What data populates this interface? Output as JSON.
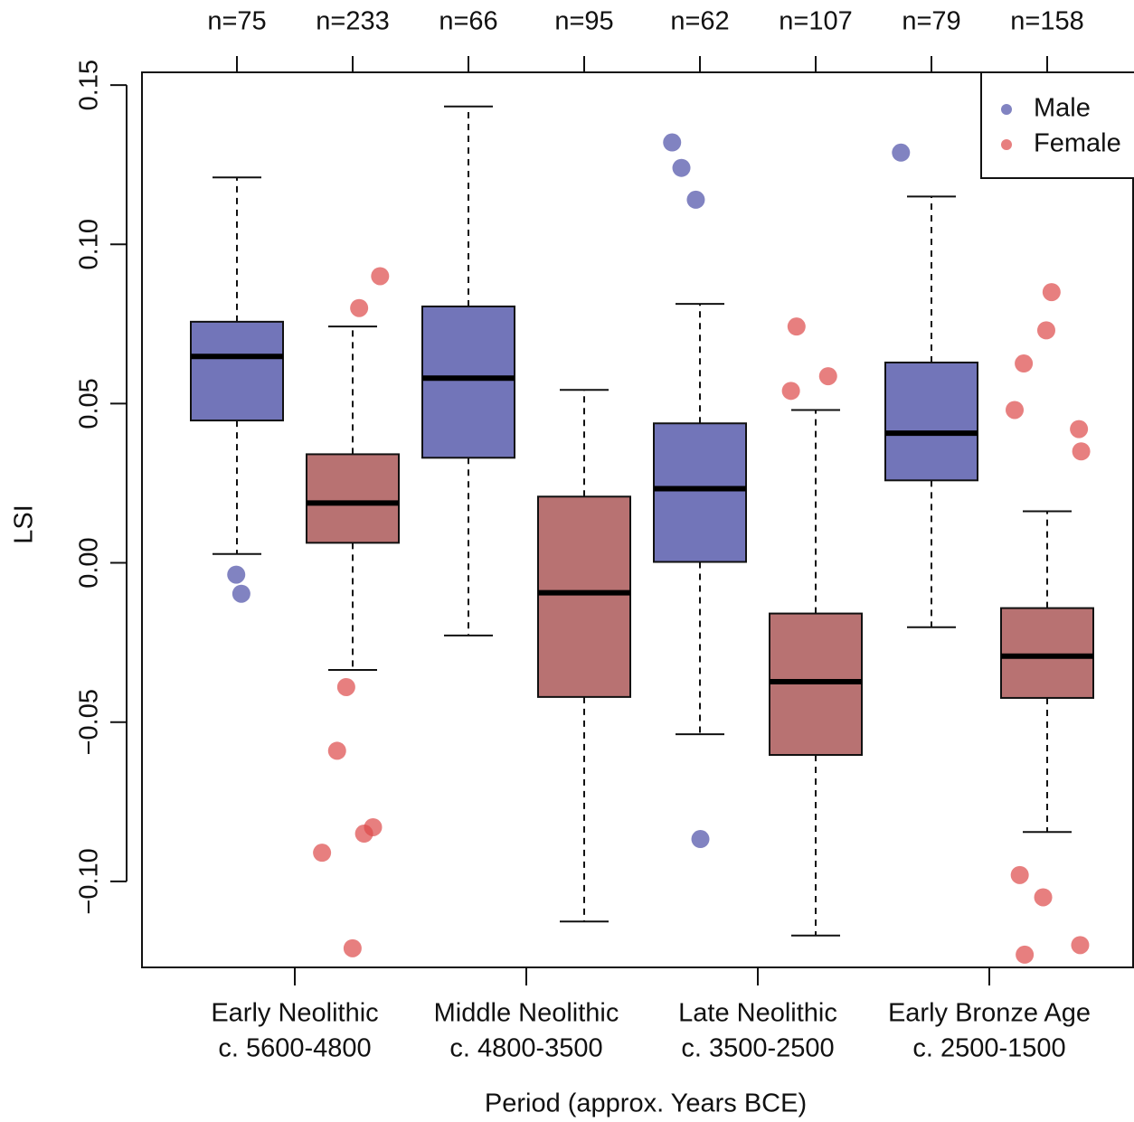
{
  "chart_data": {
    "type": "boxplot",
    "ylabel": "LSI",
    "xlabel": "Period (approx. Years BCE)",
    "categories": [
      [
        "Early Neolithic",
        "c. 5600-4800"
      ],
      [
        "Middle Neolithic",
        "c. 4800-3500"
      ],
      [
        "Late Neolithic",
        "c. 3500-2500"
      ],
      [
        "Early Bronze Age",
        "c. 2500-1500"
      ]
    ],
    "ylim": [
      -0.127,
      0.154
    ],
    "yticks": [
      {
        "value": -0.1,
        "label": "−0.10"
      },
      {
        "value": -0.05,
        "label": "−0.05"
      },
      {
        "value": 0,
        "label": "0.00"
      },
      {
        "value": 0.05,
        "label": "0.05"
      },
      {
        "value": 0.1,
        "label": "0.10"
      },
      0.15
    ],
    "legend": "topright",
    "series": [
      {
        "name": "Male",
        "color": "#4b4fa6",
        "box_color": "#7275b9",
        "n_labels": [
          "n=75",
          "n=66",
          "n=62",
          "n=79"
        ],
        "boxes": [
          {
            "whisker_low": 0.0028,
            "q1": 0.0447,
            "median": 0.0648,
            "q3": 0.0757,
            "whisker_high": 0.121,
            "outliers": [
              -0.0037,
              -0.0097
            ]
          },
          {
            "whisker_low": -0.0228,
            "q1": 0.033,
            "median": 0.058,
            "q3": 0.0805,
            "whisker_high": 0.1433,
            "outliers": []
          },
          {
            "whisker_low": -0.0538,
            "q1": 0.0003,
            "median": 0.0233,
            "q3": 0.0438,
            "whisker_high": 0.0813,
            "outliers": [
              0.132,
              0.124,
              0.114,
              -0.0867
            ]
          },
          {
            "whisker_low": -0.0202,
            "q1": 0.0259,
            "median": 0.0407,
            "q3": 0.0629,
            "whisker_high": 0.115,
            "outliers": [
              0.1288
            ]
          }
        ]
      },
      {
        "name": "Female",
        "color": "#dd4848",
        "box_color": "#b87272",
        "n_labels": [
          "n=233",
          "n=95",
          "n=107",
          "n=158"
        ],
        "boxes": [
          {
            "whisker_low": -0.0336,
            "q1": 0.0063,
            "median": 0.0188,
            "q3": 0.0341,
            "whisker_high": 0.0742,
            "outliers": [
              0.09,
              0.08,
              -0.039,
              -0.059,
              -0.083,
              -0.085,
              -0.091,
              -0.121
            ]
          },
          {
            "whisker_low": -0.1126,
            "q1": -0.0421,
            "median": -0.0094,
            "q3": 0.0208,
            "whisker_high": 0.0543,
            "outliers": []
          },
          {
            "whisker_low": -0.117,
            "q1": -0.0603,
            "median": -0.0373,
            "q3": -0.0159,
            "whisker_high": 0.048,
            "outliers": [
              0.0742,
              0.0586,
              0.054
            ]
          },
          {
            "whisker_low": -0.0845,
            "q1": -0.0424,
            "median": -0.0293,
            "q3": -0.0142,
            "whisker_high": 0.0162,
            "outliers": [
              0.085,
              0.073,
              0.0626,
              0.048,
              0.042,
              0.035,
              -0.098,
              -0.105,
              -0.12,
              -0.123
            ]
          }
        ]
      }
    ]
  }
}
